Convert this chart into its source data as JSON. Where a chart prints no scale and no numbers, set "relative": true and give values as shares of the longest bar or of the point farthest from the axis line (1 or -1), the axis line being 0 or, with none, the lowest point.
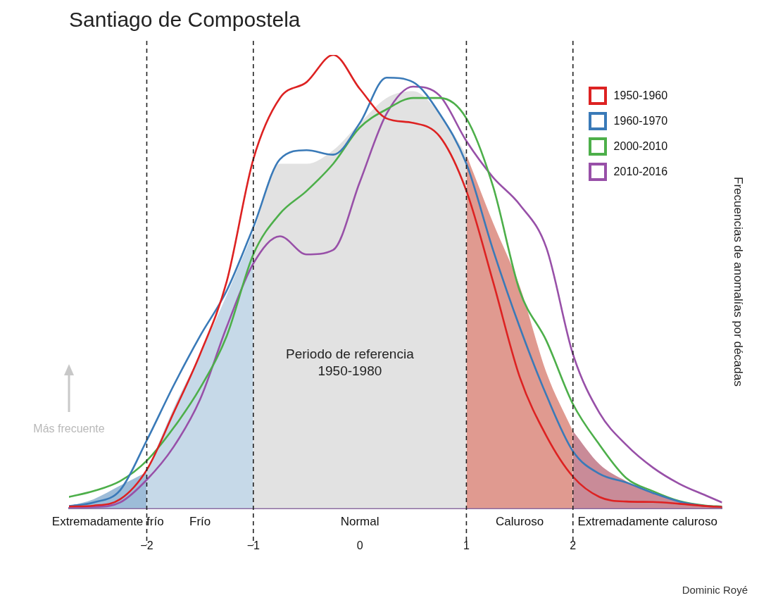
{
  "chart_data": {
    "type": "line",
    "title": "Santiago de Compostela",
    "ylabel": "Frecuencias de anomalías por décadas",
    "relative": true,
    "x": [
      -2.73,
      -2.5,
      -2.25,
      -2,
      -1.75,
      -1.5,
      -1.25,
      -1,
      -0.75,
      -0.5,
      -0.25,
      0,
      0.25,
      0.5,
      0.75,
      1,
      1.25,
      1.5,
      1.75,
      2,
      2.25,
      2.5,
      2.75,
      3,
      3.25,
      3.4
    ],
    "xlim": [
      -2.73,
      3.4
    ],
    "xticks": [
      -2,
      -1,
      0,
      1,
      2
    ],
    "grid": false,
    "legend": "top right",
    "marker": "none",
    "line_style": "solid",
    "series": [
      {
        "type": "area",
        "color": "#9dbcd8",
        "x": [
          -2.73,
          -2.5,
          -2.25,
          -2
        ],
        "values": [
          0.005,
          0.02,
          0.05,
          0.08
        ]
      },
      {
        "type": "area",
        "color": "#c6d9e8",
        "x": [
          -2,
          -1.75,
          -1.5,
          -1.25,
          -1
        ],
        "values": [
          0.08,
          0.22,
          0.34,
          0.47,
          0.61
        ]
      },
      {
        "type": "area",
        "color": "#e2e2e2",
        "x": [
          -1,
          -0.75,
          -0.5,
          -0.25,
          0,
          0.25,
          0.5,
          0.75,
          1
        ],
        "values": [
          0.61,
          0.76,
          0.76,
          0.79,
          0.85,
          0.905,
          0.92,
          0.87,
          0.78
        ]
      },
      {
        "type": "area",
        "color": "#e09a90",
        "x": [
          1,
          1.25,
          1.5,
          1.75,
          2
        ],
        "values": [
          0.78,
          0.63,
          0.49,
          0.3,
          0.17
        ]
      },
      {
        "type": "area",
        "color": "#c98b98",
        "x": [
          2,
          2.25,
          2.5,
          2.75,
          3,
          3.25,
          3.4
        ],
        "values": [
          0.17,
          0.097,
          0.06,
          0.035,
          0.015,
          0.006,
          0.003
        ]
      },
      {
        "name": "1950-1960",
        "color": "#dd2222",
        "values": [
          0.004,
          0.006,
          0.02,
          0.085,
          0.21,
          0.34,
          0.5,
          0.77,
          0.905,
          0.94,
          1.0,
          0.925,
          0.86,
          0.85,
          0.82,
          0.7,
          0.5,
          0.29,
          0.16,
          0.07,
          0.025,
          0.015,
          0.014,
          0.01,
          0.005,
          0.003
        ]
      },
      {
        "name": "1960-1970",
        "color": "#3a7ab8",
        "values": [
          0.005,
          0.013,
          0.04,
          0.15,
          0.27,
          0.38,
          0.48,
          0.62,
          0.77,
          0.79,
          0.78,
          0.85,
          0.95,
          0.94,
          0.87,
          0.76,
          0.57,
          0.4,
          0.25,
          0.126,
          0.076,
          0.057,
          0.034,
          0.015,
          0.005,
          0.003
        ]
      },
      {
        "name": "2000-2010",
        "color": "#4daf4a",
        "values": [
          0.025,
          0.038,
          0.06,
          0.105,
          0.177,
          0.265,
          0.38,
          0.56,
          0.65,
          0.7,
          0.76,
          0.84,
          0.88,
          0.905,
          0.905,
          0.86,
          0.71,
          0.48,
          0.37,
          0.23,
          0.14,
          0.067,
          0.038,
          0.016,
          0.006,
          0.004
        ]
      },
      {
        "name": "2010-2016",
        "color": "#9850a8",
        "values": [
          0.002,
          0.003,
          0.013,
          0.063,
          0.135,
          0.24,
          0.4,
          0.54,
          0.6,
          0.56,
          0.57,
          0.72,
          0.87,
          0.93,
          0.91,
          0.81,
          0.73,
          0.67,
          0.575,
          0.34,
          0.21,
          0.14,
          0.09,
          0.054,
          0.028,
          0.013
        ]
      }
    ],
    "ref_lines": [
      {
        "axis": "x",
        "value": -2,
        "line_style": "dashed",
        "color": "#222222"
      },
      {
        "axis": "x",
        "value": -1,
        "line_style": "dashed",
        "color": "#222222"
      },
      {
        "axis": "x",
        "value": 1,
        "line_style": "dashed",
        "color": "#222222"
      },
      {
        "axis": "x",
        "value": 2,
        "line_style": "dashed",
        "color": "#222222"
      }
    ],
    "annotations": [
      "Extremadamente frío",
      "Frío",
      "Normal",
      "Caluroso",
      "Extremadamente caluroso",
      "Periodo de referencia 1950-1980",
      "Más frecuente",
      "Dominic Royé"
    ]
  }
}
